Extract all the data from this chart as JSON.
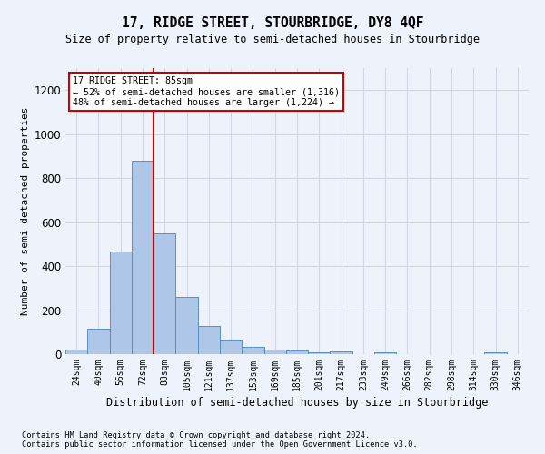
{
  "title": "17, RIDGE STREET, STOURBRIDGE, DY8 4QF",
  "subtitle": "Size of property relative to semi-detached houses in Stourbridge",
  "xlabel": "Distribution of semi-detached houses by size in Stourbridge",
  "ylabel": "Number of semi-detached properties",
  "footer_line1": "Contains HM Land Registry data © Crown copyright and database right 2024.",
  "footer_line2": "Contains public sector information licensed under the Open Government Licence v3.0.",
  "categories": [
    "24sqm",
    "40sqm",
    "56sqm",
    "72sqm",
    "88sqm",
    "105sqm",
    "121sqm",
    "137sqm",
    "153sqm",
    "169sqm",
    "185sqm",
    "201sqm",
    "217sqm",
    "233sqm",
    "249sqm",
    "266sqm",
    "282sqm",
    "298sqm",
    "314sqm",
    "330sqm",
    "346sqm"
  ],
  "values": [
    20,
    115,
    465,
    880,
    550,
    258,
    130,
    65,
    32,
    22,
    18,
    10,
    12,
    0,
    10,
    0,
    0,
    0,
    0,
    10,
    0
  ],
  "bar_color": "#aec6e8",
  "bar_edge_color": "#5a8fc2",
  "vline_x": 3.5,
  "annotation_text_line1": "17 RIDGE STREET: 85sqm",
  "annotation_text_line2": "← 52% of semi-detached houses are smaller (1,316)",
  "annotation_text_line3": "48% of semi-detached houses are larger (1,224) →",
  "annotation_box_color": "#ffffff",
  "annotation_box_edge": "#cc0000",
  "vline_color": "#cc0000",
  "grid_color": "#d0d8e8",
  "background_color": "#eef2fb",
  "ylim": [
    0,
    1300
  ],
  "yticks": [
    0,
    200,
    400,
    600,
    800,
    1000,
    1200
  ]
}
